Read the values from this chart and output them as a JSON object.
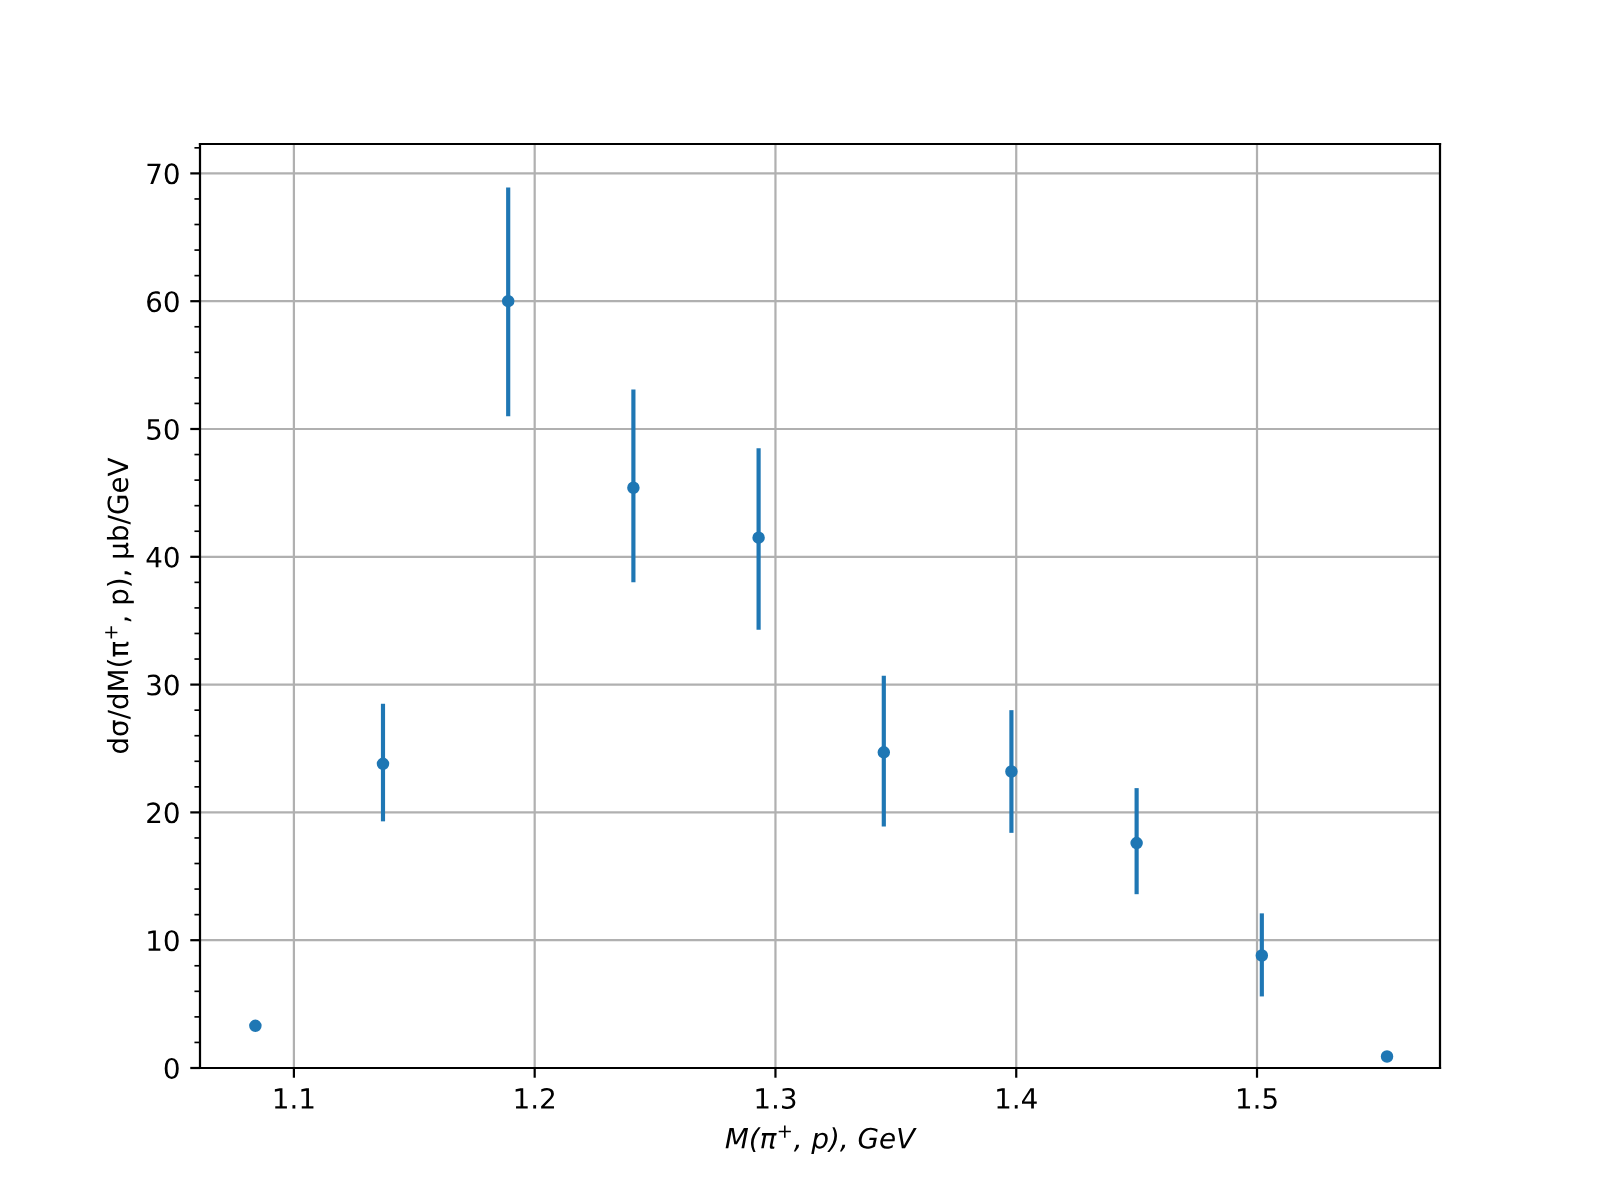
{
  "chart_data": {
    "type": "scatter",
    "xlabel": "M(π$^{+}$, p), GeV",
    "ylabel": "dσ/dM(π$^{+}$, p), μb/GeV",
    "x": [
      1.084,
      1.137,
      1.189,
      1.241,
      1.293,
      1.345,
      1.398,
      1.45,
      1.502,
      1.554
    ],
    "series": [
      {
        "color": "#1f77b4",
        "values": [
          3.3,
          23.8,
          60.0,
          45.4,
          41.5,
          24.7,
          23.2,
          17.6,
          8.8,
          0.9
        ],
        "errors": [
          null,
          [
            19.3,
            28.5
          ],
          [
            51.0,
            68.9
          ],
          [
            38.0,
            53.1
          ],
          [
            34.3,
            48.5
          ],
          [
            18.9,
            30.7
          ],
          [
            18.4,
            28.0
          ],
          [
            13.6,
            21.9
          ],
          [
            5.6,
            12.1
          ],
          null
        ]
      }
    ],
    "xlim": [
      1.061,
      1.576
    ],
    "ylim": [
      0,
      72.3
    ],
    "xticks": [
      1.1,
      1.2,
      1.3,
      1.4,
      1.5
    ],
    "yticks": [
      0,
      10,
      20,
      30,
      40,
      50,
      60,
      70
    ],
    "grid": true,
    "marker": "circle"
  }
}
